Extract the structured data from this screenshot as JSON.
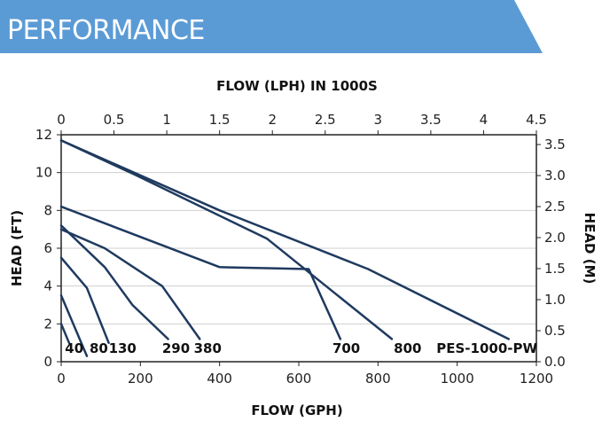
{
  "banner": {
    "title": "PERFORMANCE",
    "color": "#5b9bd5"
  },
  "chart_data": {
    "type": "line",
    "xlabel": "FLOW (GPH)",
    "ylabel": "HEAD (FT)",
    "x2label": "FLOW (LPH) IN 1000S",
    "y2label": "HEAD (M)",
    "xlim": [
      0,
      1200
    ],
    "ylim": [
      0,
      12
    ],
    "x2lim": [
      0,
      4.5
    ],
    "y2lim": [
      0,
      3.6576
    ],
    "x_ticks": [
      "0",
      "200",
      "400",
      "600",
      "800",
      "1000",
      "1200"
    ],
    "y_ticks": [
      "0",
      "2",
      "4",
      "6",
      "8",
      "10",
      "12"
    ],
    "x2_ticks": [
      "0",
      "0.5",
      "1",
      "1.5",
      "2",
      "2.5",
      "3",
      "3.5",
      "4",
      "4.5"
    ],
    "y2_ticks": [
      "0.0",
      "0.5",
      "1.0",
      "1.5",
      "2.0",
      "2.5",
      "3.0",
      "3.5"
    ],
    "grid": true,
    "line_color": "#1f3a5f",
    "series": [
      {
        "name": "40",
        "x": [
          0,
          20
        ],
        "y": [
          2.0,
          1.0
        ]
      },
      {
        "name": "80",
        "x": [
          0,
          65
        ],
        "y": [
          3.5,
          0.3
        ]
      },
      {
        "name": "130",
        "x": [
          0,
          65,
          120
        ],
        "y": [
          5.5,
          3.9,
          1.0
        ]
      },
      {
        "name": "290",
        "x": [
          0,
          110,
          180,
          270
        ],
        "y": [
          7.2,
          5.0,
          3.0,
          1.2
        ]
      },
      {
        "name": "380",
        "x": [
          0,
          110,
          255,
          350
        ],
        "y": [
          7.0,
          6.0,
          4.0,
          1.2
        ]
      },
      {
        "name": "700",
        "x": [
          0,
          400,
          625,
          705
        ],
        "y": [
          8.2,
          5.0,
          4.9,
          1.2
        ]
      },
      {
        "name": "800",
        "x": [
          0,
          185,
          520,
          835
        ],
        "y": [
          11.7,
          9.9,
          6.5,
          1.2
        ]
      },
      {
        "name": "PES-1000-PW",
        "x": [
          0,
          400,
          775,
          1130
        ],
        "y": [
          11.7,
          8.0,
          4.9,
          1.2
        ]
      }
    ],
    "labels": [
      {
        "text": "40",
        "x": 33,
        "y": 0.7
      },
      {
        "text": "80",
        "x": 95,
        "y": 0.7
      },
      {
        "text": "130",
        "x": 155,
        "y": 0.7
      },
      {
        "text": "290",
        "x": 290,
        "y": 0.7
      },
      {
        "text": "380",
        "x": 370,
        "y": 0.7
      },
      {
        "text": "700",
        "x": 720,
        "y": 0.7
      },
      {
        "text": "800",
        "x": 875,
        "y": 0.7
      },
      {
        "text": "PES-1000-PW",
        "x": 1075,
        "y": 0.7
      }
    ]
  }
}
